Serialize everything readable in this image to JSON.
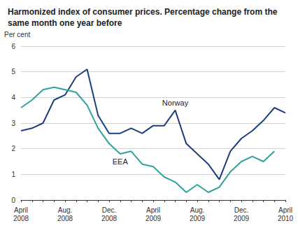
{
  "chart_data": {
    "type": "line",
    "title": "Harmonized index of consumer prices. Percentage change from the same month one year before",
    "y_label": "Per cent",
    "categories": [
      "April 2008",
      null,
      null,
      null,
      "Aug. 2008",
      null,
      null,
      null,
      "Dec. 2008",
      null,
      null,
      null,
      "April 2009",
      null,
      null,
      null,
      "Aug. 2009",
      null,
      null,
      null,
      "Dec. 2009",
      null,
      null,
      null,
      "April 2010"
    ],
    "series": [
      {
        "name": "Norway",
        "color": "#1b3f7f",
        "values": [
          2.7,
          2.8,
          3.0,
          3.9,
          4.1,
          4.8,
          5.1,
          3.3,
          2.6,
          2.6,
          2.8,
          2.6,
          2.9,
          2.9,
          3.5,
          2.2,
          1.8,
          1.4,
          0.8,
          1.9,
          2.4,
          2.7,
          3.1,
          3.6,
          3.4
        ]
      },
      {
        "name": "EEA",
        "color": "#2fa39b",
        "values": [
          3.6,
          3.9,
          4.3,
          4.4,
          4.3,
          4.2,
          3.7,
          2.8,
          2.2,
          1.8,
          1.9,
          1.4,
          1.3,
          0.9,
          0.7,
          0.3,
          0.6,
          0.3,
          0.5,
          1.1,
          1.5,
          1.7,
          1.5,
          1.9,
          null
        ]
      }
    ],
    "ylim": [
      0,
      6
    ],
    "yticks": [
      0,
      1,
      2,
      3,
      4,
      5,
      6
    ],
    "grid": true
  }
}
